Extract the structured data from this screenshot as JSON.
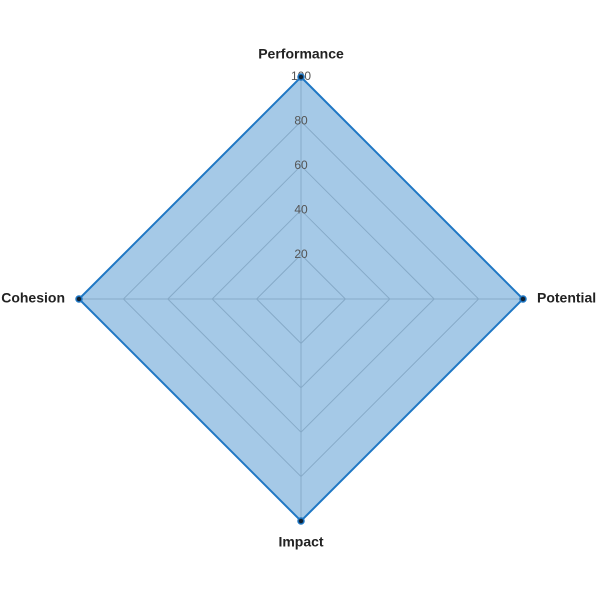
{
  "chart_data": {
    "type": "radar",
    "categories": [
      "Performance",
      "Potential",
      "Impact",
      "Cohesion"
    ],
    "values": [
      100,
      100,
      100,
      100
    ],
    "color": "#1f77c4",
    "rlim": [
      0,
      100
    ],
    "rticks": [
      20,
      40,
      60,
      80,
      100
    ],
    "grid": true
  }
}
